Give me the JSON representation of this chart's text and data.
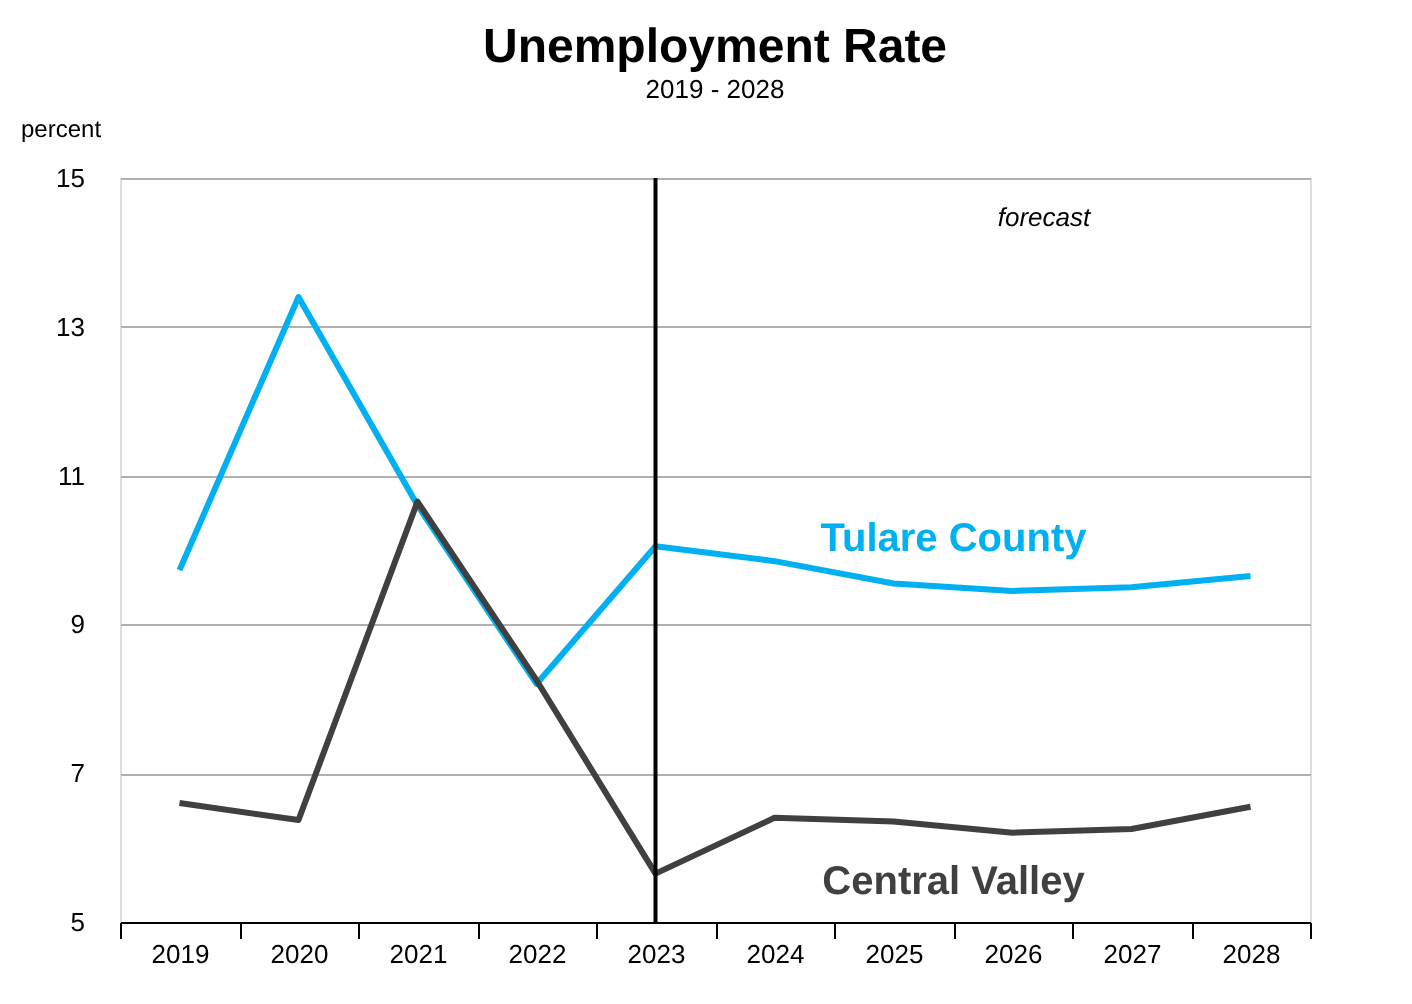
{
  "chart_data": {
    "type": "line",
    "title": "Unemployment Rate",
    "subtitle": "2019 - 2028",
    "ylabel": "percent",
    "categories": [
      "2019",
      "2020",
      "2021",
      "2022",
      "2023",
      "2024",
      "2025",
      "2026",
      "2027",
      "2028"
    ],
    "series": [
      {
        "name": "Tulare County",
        "color": "#00b0f0",
        "values": [
          9.73,
          13.4,
          10.6,
          8.2,
          10.05,
          9.85,
          9.55,
          9.45,
          9.5,
          9.65
        ]
      },
      {
        "name": "Central Valley",
        "color": "#404040",
        "values": [
          6.6,
          6.37,
          10.65,
          8.25,
          5.65,
          6.4,
          6.35,
          6.2,
          6.25,
          6.55
        ]
      }
    ],
    "line_style": "solid",
    "ylim": [
      5,
      15
    ],
    "yticks": [
      5,
      7,
      9,
      11,
      13,
      15
    ],
    "grid": "y",
    "ref_lines": [
      {
        "axis": "x",
        "value": "2023",
        "color": "#000000"
      }
    ],
    "annotations": [
      "forecast"
    ]
  }
}
